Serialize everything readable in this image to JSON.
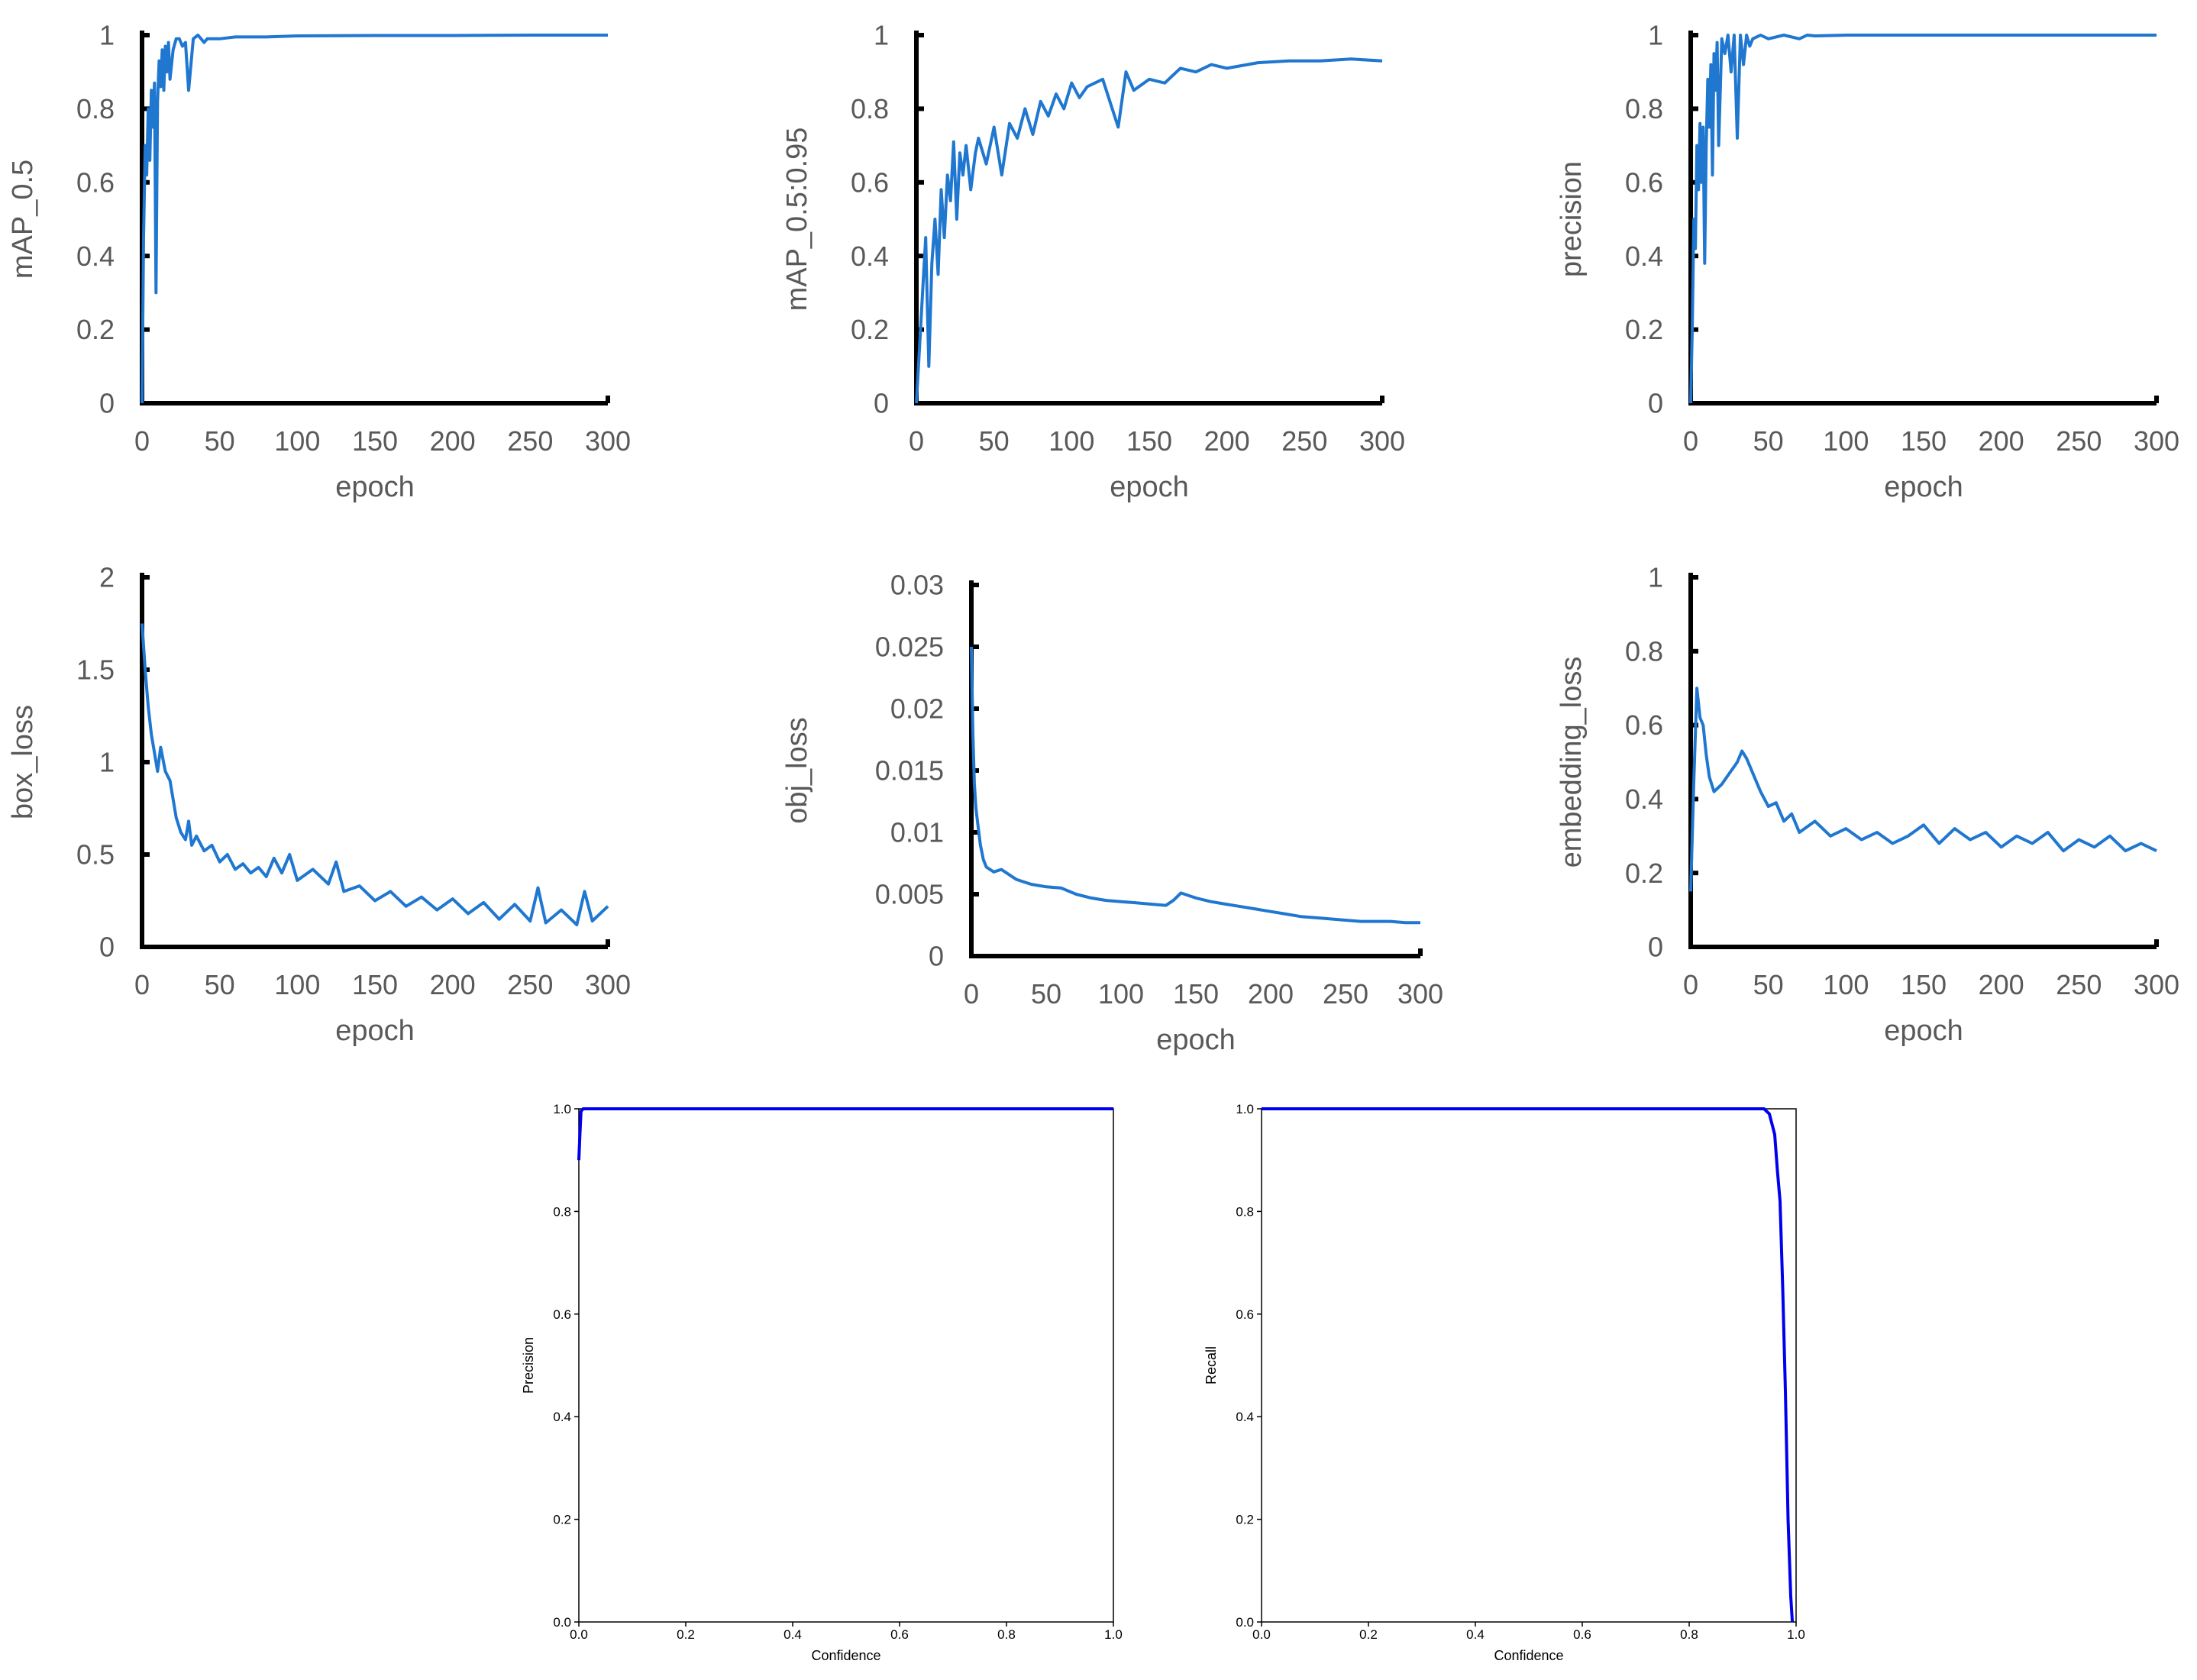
{
  "chart_data": [
    {
      "type": "line",
      "ylabel": "mAP_0.5",
      "xlabel": "epoch",
      "xlim": [
        0,
        300
      ],
      "ylim": [
        0,
        1
      ],
      "xticks": [
        0,
        50,
        100,
        150,
        200,
        250,
        300
      ],
      "yticks": [
        0,
        0.2,
        0.4,
        0.6,
        0.8,
        1
      ],
      "ytick_labels": [
        "0",
        "0.2",
        "0.4",
        "0.6",
        "0.8",
        "1"
      ],
      "color": "#1f77d0",
      "series": [
        {
          "x": [
            0,
            1,
            2,
            3,
            4,
            5,
            6,
            7,
            8,
            9,
            10,
            11,
            12,
            13,
            14,
            15,
            16,
            17,
            18,
            20,
            22,
            24,
            26,
            28,
            30,
            33,
            36,
            40,
            42,
            45,
            50,
            60,
            80,
            100,
            150,
            200,
            250,
            300
          ],
          "y": [
            0.0,
            0.45,
            0.7,
            0.62,
            0.8,
            0.66,
            0.85,
            0.75,
            0.87,
            0.3,
            0.82,
            0.93,
            0.86,
            0.96,
            0.85,
            0.97,
            0.9,
            0.98,
            0.88,
            0.96,
            0.99,
            0.99,
            0.97,
            0.98,
            0.85,
            0.99,
            1.0,
            0.98,
            0.99,
            0.99,
            0.99,
            0.995,
            0.995,
            0.998,
            0.999,
            0.999,
            1.0,
            1.0
          ]
        }
      ]
    },
    {
      "type": "line",
      "ylabel": "mAP_0.5:0.95",
      "xlabel": "epoch",
      "xlim": [
        0,
        300
      ],
      "ylim": [
        0,
        1
      ],
      "xticks": [
        0,
        50,
        100,
        150,
        200,
        250,
        300
      ],
      "yticks": [
        0,
        0.2,
        0.4,
        0.6,
        0.8,
        1
      ],
      "ytick_labels": [
        "0",
        "0.2",
        "0.4",
        "0.6",
        "0.8",
        "1"
      ],
      "color": "#1f77d0",
      "series": [
        {
          "x": [
            0,
            2,
            4,
            6,
            8,
            10,
            12,
            14,
            16,
            18,
            20,
            22,
            24,
            26,
            28,
            30,
            32,
            35,
            38,
            40,
            45,
            50,
            55,
            60,
            65,
            70,
            75,
            80,
            85,
            90,
            95,
            100,
            105,
            110,
            120,
            130,
            135,
            140,
            150,
            160,
            170,
            180,
            190,
            200,
            220,
            240,
            260,
            280,
            300
          ],
          "y": [
            0.0,
            0.15,
            0.3,
            0.45,
            0.1,
            0.38,
            0.5,
            0.35,
            0.58,
            0.45,
            0.62,
            0.55,
            0.71,
            0.5,
            0.68,
            0.62,
            0.7,
            0.58,
            0.68,
            0.72,
            0.65,
            0.75,
            0.62,
            0.76,
            0.72,
            0.8,
            0.73,
            0.82,
            0.78,
            0.84,
            0.8,
            0.87,
            0.83,
            0.86,
            0.88,
            0.75,
            0.9,
            0.85,
            0.88,
            0.87,
            0.91,
            0.9,
            0.92,
            0.91,
            0.925,
            0.93,
            0.93,
            0.935,
            0.93
          ]
        }
      ]
    },
    {
      "type": "line",
      "ylabel": "precision",
      "xlabel": "epoch",
      "xlim": [
        0,
        300
      ],
      "ylim": [
        0,
        1
      ],
      "xticks": [
        0,
        50,
        100,
        150,
        200,
        250,
        300
      ],
      "yticks": [
        0,
        0.2,
        0.4,
        0.6,
        0.8,
        1
      ],
      "ytick_labels": [
        "0",
        "0.2",
        "0.4",
        "0.6",
        "0.8",
        "1"
      ],
      "color": "#1f77d0",
      "series": [
        {
          "x": [
            0,
            1,
            2,
            3,
            4,
            5,
            6,
            7,
            8,
            9,
            10,
            11,
            12,
            13,
            14,
            15,
            16,
            17,
            18,
            20,
            22,
            24,
            26,
            28,
            30,
            32,
            34,
            36,
            38,
            40,
            45,
            50,
            60,
            70,
            75,
            80,
            100,
            150,
            200,
            250,
            300
          ],
          "y": [
            0.0,
            0.2,
            0.5,
            0.42,
            0.7,
            0.58,
            0.76,
            0.6,
            0.75,
            0.38,
            0.7,
            0.88,
            0.75,
            0.92,
            0.62,
            0.95,
            0.85,
            0.98,
            0.7,
            0.99,
            0.95,
            1.0,
            0.9,
            1.0,
            0.72,
            1.0,
            0.92,
            1.0,
            0.97,
            0.99,
            1.0,
            0.99,
            1.0,
            0.99,
            1.0,
            0.998,
            1.0,
            1.0,
            1.0,
            1.0,
            1.0
          ]
        }
      ]
    },
    {
      "type": "line",
      "ylabel": "box_loss",
      "xlabel": "epoch",
      "xlim": [
        0,
        300
      ],
      "ylim": [
        0,
        2
      ],
      "xticks": [
        0,
        50,
        100,
        150,
        200,
        250,
        300
      ],
      "yticks": [
        0,
        0.5,
        1,
        1.5,
        2
      ],
      "ytick_labels": [
        "0",
        "0.5",
        "1",
        "1.5",
        "2"
      ],
      "color": "#1f77d0",
      "series": [
        {
          "x": [
            0,
            2,
            4,
            6,
            8,
            10,
            12,
            15,
            18,
            22,
            25,
            28,
            30,
            32,
            35,
            40,
            45,
            50,
            55,
            60,
            65,
            70,
            75,
            80,
            85,
            90,
            95,
            100,
            110,
            120,
            125,
            130,
            140,
            150,
            160,
            170,
            180,
            190,
            200,
            210,
            220,
            230,
            240,
            250,
            255,
            260,
            270,
            280,
            285,
            290,
            300
          ],
          "y": [
            1.75,
            1.5,
            1.3,
            1.15,
            1.05,
            0.95,
            1.08,
            0.95,
            0.9,
            0.7,
            0.62,
            0.58,
            0.68,
            0.55,
            0.6,
            0.52,
            0.55,
            0.46,
            0.5,
            0.42,
            0.45,
            0.4,
            0.43,
            0.38,
            0.48,
            0.4,
            0.5,
            0.36,
            0.42,
            0.34,
            0.46,
            0.3,
            0.33,
            0.25,
            0.3,
            0.22,
            0.27,
            0.2,
            0.26,
            0.18,
            0.24,
            0.15,
            0.23,
            0.14,
            0.32,
            0.13,
            0.2,
            0.12,
            0.3,
            0.14,
            0.22
          ]
        }
      ]
    },
    {
      "type": "line",
      "ylabel": "obj_loss",
      "xlabel": "epoch",
      "xlim": [
        0,
        300
      ],
      "ylim": [
        0,
        0.03
      ],
      "xticks": [
        0,
        50,
        100,
        150,
        200,
        250,
        300
      ],
      "yticks": [
        0,
        0.005,
        0.01,
        0.015,
        0.02,
        0.025,
        0.03
      ],
      "ytick_labels": [
        "0",
        "0.005",
        "0.01",
        "0.015",
        "0.02",
        "0.025",
        "0.03"
      ],
      "color": "#1f77d0",
      "series": [
        {
          "x": [
            0,
            1,
            2,
            3,
            4,
            6,
            8,
            10,
            15,
            20,
            25,
            30,
            40,
            50,
            60,
            70,
            80,
            90,
            100,
            110,
            120,
            130,
            135,
            140,
            145,
            150,
            160,
            170,
            180,
            190,
            200,
            210,
            220,
            230,
            240,
            250,
            260,
            270,
            280,
            290,
            300
          ],
          "y": [
            0.025,
            0.018,
            0.014,
            0.012,
            0.011,
            0.009,
            0.0078,
            0.0072,
            0.0068,
            0.007,
            0.0066,
            0.0062,
            0.0058,
            0.0056,
            0.0055,
            0.005,
            0.0047,
            0.0045,
            0.0044,
            0.0043,
            0.0042,
            0.0041,
            0.0045,
            0.0051,
            0.0049,
            0.0047,
            0.0044,
            0.0042,
            0.004,
            0.0038,
            0.0036,
            0.0034,
            0.0032,
            0.0031,
            0.003,
            0.0029,
            0.0028,
            0.0028,
            0.0028,
            0.0027,
            0.0027
          ]
        }
      ]
    },
    {
      "type": "line",
      "ylabel": "embedding_loss",
      "xlabel": "epoch",
      "xlim": [
        0,
        300
      ],
      "ylim": [
        0,
        1
      ],
      "xticks": [
        0,
        50,
        100,
        150,
        200,
        250,
        300
      ],
      "yticks": [
        0,
        0.2,
        0.4,
        0.6,
        0.8,
        1
      ],
      "ytick_labels": [
        "0",
        "0.2",
        "0.4",
        "0.6",
        "0.8",
        "1"
      ],
      "color": "#1f77d0",
      "series": [
        {
          "x": [
            0,
            2,
            4,
            6,
            8,
            10,
            12,
            15,
            20,
            25,
            30,
            33,
            36,
            40,
            45,
            50,
            55,
            60,
            65,
            70,
            80,
            90,
            100,
            110,
            120,
            130,
            140,
            150,
            160,
            170,
            180,
            190,
            200,
            210,
            220,
            230,
            240,
            250,
            260,
            270,
            280,
            290,
            300
          ],
          "y": [
            0.15,
            0.45,
            0.7,
            0.62,
            0.6,
            0.52,
            0.46,
            0.42,
            0.44,
            0.47,
            0.5,
            0.53,
            0.51,
            0.47,
            0.42,
            0.38,
            0.39,
            0.34,
            0.36,
            0.31,
            0.34,
            0.3,
            0.32,
            0.29,
            0.31,
            0.28,
            0.3,
            0.33,
            0.28,
            0.32,
            0.29,
            0.31,
            0.27,
            0.3,
            0.28,
            0.31,
            0.26,
            0.29,
            0.27,
            0.3,
            0.26,
            0.28,
            0.26
          ]
        }
      ]
    },
    {
      "type": "line",
      "ylabel": "Precision",
      "xlabel": "Confidence",
      "xlim": [
        0,
        1
      ],
      "ylim": [
        0,
        1
      ],
      "xticks": [
        0,
        0.2,
        0.4,
        0.6,
        0.8,
        1.0
      ],
      "yticks": [
        0,
        0.2,
        0.4,
        0.6,
        0.8,
        1.0
      ],
      "xtick_labels": [
        "0.0",
        "0.2",
        "0.4",
        "0.6",
        "0.8",
        "1.0"
      ],
      "ytick_labels": [
        "0.0",
        "0.2",
        "0.4",
        "0.6",
        "0.8",
        "1.0"
      ],
      "color": "#0000ee",
      "series": [
        {
          "x": [
            0.0,
            0.002,
            0.004,
            0.008,
            0.02,
            0.1,
            0.5,
            0.9,
            1.0
          ],
          "y": [
            0.9,
            0.95,
            0.995,
            1.0,
            1.0,
            1.0,
            1.0,
            1.0,
            1.0
          ]
        }
      ]
    },
    {
      "type": "line",
      "ylabel": "Recall",
      "xlabel": "Confidence",
      "xlim": [
        0,
        1
      ],
      "ylim": [
        0,
        1
      ],
      "xticks": [
        0,
        0.2,
        0.4,
        0.6,
        0.8,
        1.0
      ],
      "yticks": [
        0,
        0.2,
        0.4,
        0.6,
        0.8,
        1.0
      ],
      "xtick_labels": [
        "0.0",
        "0.2",
        "0.4",
        "0.6",
        "0.8",
        "1.0"
      ],
      "ytick_labels": [
        "0.0",
        "0.2",
        "0.4",
        "0.6",
        "0.8",
        "1.0"
      ],
      "color": "#0000ee",
      "series": [
        {
          "x": [
            0.0,
            0.5,
            0.94,
            0.95,
            0.96,
            0.965,
            0.97,
            0.975,
            0.98,
            0.985,
            0.99,
            0.993
          ],
          "y": [
            1.0,
            1.0,
            1.0,
            0.99,
            0.95,
            0.88,
            0.82,
            0.65,
            0.45,
            0.2,
            0.05,
            0.0
          ]
        }
      ]
    }
  ]
}
